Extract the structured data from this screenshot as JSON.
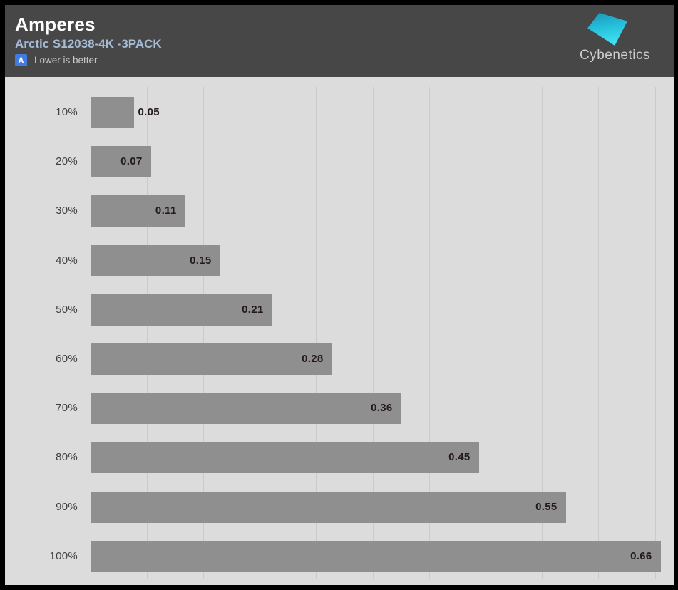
{
  "header": {
    "title": "Amperes",
    "subtitle": "Arctic S12038-4K -3PACK",
    "rating_badge": "A",
    "note": "Lower is better",
    "logo_text": "Cybenetics"
  },
  "colors": {
    "frame": "#000000",
    "header_bg": "#474747",
    "title_text": "#ffffff",
    "subtitle_text": "#a5bbd6",
    "badge_bg": "#417be0",
    "note_text": "#c8c8c8",
    "chart_bg": "#dcdcdc",
    "gridline": "#cbcbcb",
    "bar_fill": "#8f8f8f",
    "bar_value_text": "#241a1a",
    "category_text": "#3f3f3f",
    "logo_text": "#cfcfcf",
    "logo_gradient_top": "#1b95ba",
    "logo_gradient_bottom": "#40e0f2"
  },
  "chart_data": {
    "type": "bar",
    "orientation": "horizontal",
    "title": "Amperes",
    "subtitle": "Arctic S12038-4K -3PACK",
    "annotation": "Lower is better",
    "categories": [
      "10%",
      "20%",
      "30%",
      "40%",
      "50%",
      "60%",
      "70%",
      "80%",
      "90%",
      "100%"
    ],
    "values": [
      0.05,
      0.07,
      0.11,
      0.15,
      0.21,
      0.28,
      0.36,
      0.45,
      0.55,
      0.66
    ],
    "value_labels": [
      "0.05",
      "0.07",
      "0.11",
      "0.15",
      "0.21",
      "0.28",
      "0.36",
      "0.45",
      "0.55",
      "0.66"
    ],
    "xlabel": "",
    "ylabel": "",
    "xlim": [
      0,
      0.675
    ],
    "grid": "vertical",
    "gridline_count": 11,
    "legend": "none"
  }
}
